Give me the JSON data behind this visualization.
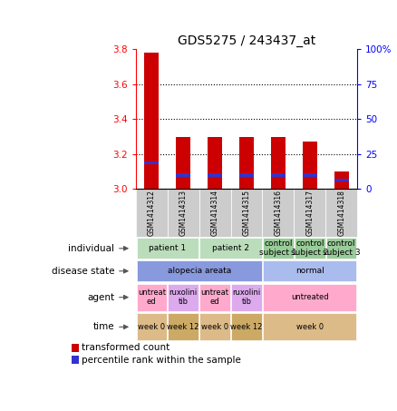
{
  "title": "GDS5275 / 243437_at",
  "samples": [
    "GSM1414312",
    "GSM1414313",
    "GSM1414314",
    "GSM1414315",
    "GSM1414316",
    "GSM1414317",
    "GSM1414318"
  ],
  "bar_values": [
    3.78,
    3.3,
    3.3,
    3.3,
    3.3,
    3.27,
    3.1
  ],
  "blue_values": [
    3.15,
    3.08,
    3.08,
    3.08,
    3.08,
    3.08,
    3.05
  ],
  "ylim_left": [
    3.0,
    3.8
  ],
  "ylim_right": [
    0,
    100
  ],
  "yticks_left": [
    3.0,
    3.2,
    3.4,
    3.6,
    3.8
  ],
  "yticks_right": [
    0,
    25,
    50,
    75,
    100
  ],
  "ytick_labels_right": [
    "0",
    "25",
    "50",
    "75",
    "100%"
  ],
  "bar_color": "#cc0000",
  "blue_color": "#3333cc",
  "rows": {
    "individual": {
      "groups": [
        {
          "label": "patient 1",
          "span": [
            0,
            1
          ],
          "color": "#bbddbb"
        },
        {
          "label": "patient 2",
          "span": [
            2,
            3
          ],
          "color": "#bbddbb"
        },
        {
          "label": "control\nsubject 1",
          "span": [
            4,
            4
          ],
          "color": "#99cc99"
        },
        {
          "label": "control\nsubject 2",
          "span": [
            5,
            5
          ],
          "color": "#99cc99"
        },
        {
          "label": "control\nsubject 3",
          "span": [
            6,
            6
          ],
          "color": "#99cc99"
        }
      ]
    },
    "disease_state": {
      "groups": [
        {
          "label": "alopecia areata",
          "span": [
            0,
            3
          ],
          "color": "#8899dd"
        },
        {
          "label": "normal",
          "span": [
            4,
            6
          ],
          "color": "#aabbee"
        }
      ]
    },
    "agent": {
      "groups": [
        {
          "label": "untreat\ned",
          "span": [
            0,
            0
          ],
          "color": "#ffaacc"
        },
        {
          "label": "ruxolini\ntib",
          "span": [
            1,
            1
          ],
          "color": "#ddaaee"
        },
        {
          "label": "untreat\ned",
          "span": [
            2,
            2
          ],
          "color": "#ffaacc"
        },
        {
          "label": "ruxolini\ntib",
          "span": [
            3,
            3
          ],
          "color": "#ddaaee"
        },
        {
          "label": "untreated",
          "span": [
            4,
            6
          ],
          "color": "#ffaacc"
        }
      ]
    },
    "time": {
      "groups": [
        {
          "label": "week 0",
          "span": [
            0,
            0
          ],
          "color": "#ddbb88"
        },
        {
          "label": "week 12",
          "span": [
            1,
            1
          ],
          "color": "#ccaa66"
        },
        {
          "label": "week 0",
          "span": [
            2,
            2
          ],
          "color": "#ddbb88"
        },
        {
          "label": "week 12",
          "span": [
            3,
            3
          ],
          "color": "#ccaa66"
        },
        {
          "label": "week 0",
          "span": [
            4,
            6
          ],
          "color": "#ddbb88"
        }
      ]
    }
  },
  "row_names": [
    "individual",
    "disease state",
    "agent",
    "time"
  ],
  "row_keys": [
    "individual",
    "disease_state",
    "agent",
    "time"
  ],
  "legend": [
    {
      "color": "#cc0000",
      "label": "transformed count"
    },
    {
      "color": "#3333cc",
      "label": "percentile rank within the sample"
    }
  ]
}
